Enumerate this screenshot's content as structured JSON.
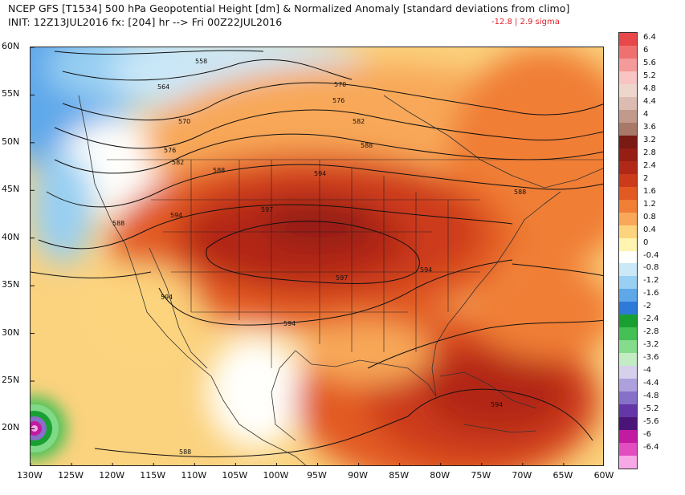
{
  "header": {
    "title_line1": "NCEP GFS [T1534] 500 hPa Geopotential Height [dm] & Normalized Anomaly [standard deviations from climo]",
    "title_line2": "INIT: 12Z13JUL2016 fx: [204] hr --> Fri 00Z22JUL2016",
    "range_label": "-12.8 | 2.9 sigma"
  },
  "axes": {
    "lat_labels": [
      "60N",
      "55N",
      "50N",
      "45N",
      "40N",
      "35N",
      "30N",
      "25N",
      "20N"
    ],
    "lon_labels": [
      "130W",
      "125W",
      "120W",
      "115W",
      "110W",
      "105W",
      "100W",
      "95W",
      "90W",
      "85W",
      "80W",
      "75W",
      "70W",
      "65W",
      "60W"
    ],
    "lon_range": [
      -130,
      -60
    ],
    "lat_range": [
      16,
      60
    ]
  },
  "contours": {
    "labels": [
      "558",
      "564",
      "570",
      "576",
      "582",
      "588",
      "594",
      "597",
      "570",
      "576",
      "582",
      "588",
      "594",
      "597",
      "594",
      "594",
      "588",
      "588",
      "594",
      "588",
      "594"
    ]
  },
  "colorbar": {
    "labels": [
      "6.4",
      "6",
      "5.6",
      "5.2",
      "4.8",
      "4.4",
      "4",
      "3.6",
      "3.2",
      "2.8",
      "2.4",
      "2",
      "1.6",
      "1.2",
      "0.8",
      "0.4",
      "0",
      "-0.4",
      "-0.8",
      "-1.2",
      "-1.6",
      "-2",
      "-2.4",
      "-2.8",
      "-3.2",
      "-3.6",
      "-4",
      "-4.4",
      "-4.8",
      "-5.2",
      "-5.6",
      "-6",
      "-6.4"
    ],
    "colors": [
      "#e8484a",
      "#f07070",
      "#f49a9a",
      "#f8c4c4",
      "#efd6cc",
      "#dcbcb0",
      "#c29a8c",
      "#a87868",
      "#7a1a12",
      "#961e14",
      "#b22818",
      "#cc3a1c",
      "#e25a22",
      "#f07e34",
      "#f8a858",
      "#fdd47e",
      "#fff4b0",
      "#fffffc",
      "#cbe8f8",
      "#98cff2",
      "#5ea8ea",
      "#2e7ad8",
      "#1aa032",
      "#44c054",
      "#84dc8c",
      "#c4ecc4",
      "#d6d0ec",
      "#aea0dc",
      "#8670c8",
      "#6436a8",
      "#4a1478",
      "#c21aa0",
      "#e24ec0",
      "#f8a8e6"
    ]
  }
}
